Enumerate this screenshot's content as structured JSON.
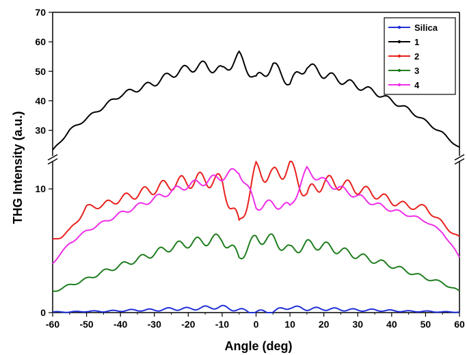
{
  "chart_data": {
    "type": "line",
    "xlabel": "Angle (deg)",
    "ylabel": "THG Intensity (a.u.)",
    "x_range": [
      -60,
      60
    ],
    "x_ticks": [
      -60,
      -50,
      -40,
      -30,
      -20,
      -10,
      0,
      10,
      20,
      30,
      40,
      50,
      60
    ],
    "y_range_lower": [
      0,
      12
    ],
    "y_ticks_lower": [
      0,
      10
    ],
    "y_range_upper": [
      22,
      70
    ],
    "y_ticks_upper": [
      30,
      40,
      50,
      60,
      70
    ],
    "axis_break": true,
    "grid": false,
    "legend_position": "top-right",
    "x": [
      -60,
      -55,
      -50,
      -45,
      -40,
      -35,
      -30,
      -25,
      -20,
      -15,
      -10,
      -5,
      0,
      5,
      10,
      15,
      20,
      25,
      30,
      35,
      40,
      45,
      50,
      55,
      60
    ],
    "series": [
      {
        "name": "Silica",
        "color": "#1f2fd6",
        "values": [
          0.05,
          0.05,
          0.1,
          0.1,
          0.15,
          0.2,
          0.2,
          0.3,
          0.3,
          0.4,
          0.45,
          0.2,
          0.05,
          0.1,
          0.45,
          0.3,
          0.3,
          0.25,
          0.2,
          0.2,
          0.15,
          0.1,
          0.1,
          0.05,
          0.05
        ]
      },
      {
        "name": "1",
        "color": "#000000",
        "values": [
          23,
          30,
          34,
          38,
          42,
          44,
          46,
          49,
          51,
          52,
          50,
          55,
          47,
          52,
          46,
          52,
          49,
          47,
          45,
          43,
          40,
          37,
          33,
          29,
          24
        ]
      },
      {
        "name": "2",
        "color": "#e8201c",
        "values": [
          5.8,
          6.6,
          8.5,
          8.7,
          9.2,
          9.6,
          10.0,
          10.4,
          10.6,
          10.8,
          10.5,
          7.0,
          11.5,
          11.0,
          11.8,
          9.5,
          10.6,
          10.4,
          10.0,
          9.6,
          9.0,
          8.6,
          8.5,
          7.2,
          6.0
        ]
      },
      {
        "name": "3",
        "color": "#1e7d1e",
        "values": [
          1.7,
          2.2,
          2.7,
          3.3,
          3.8,
          4.3,
          4.8,
          5.3,
          5.6,
          5.8,
          6.0,
          4.5,
          6.0,
          5.9,
          5.0,
          5.5,
          5.4,
          5.0,
          4.6,
          4.2,
          3.8,
          3.3,
          2.8,
          2.4,
          1.7
        ]
      },
      {
        "name": "4",
        "color": "#ee2ee8",
        "values": [
          4.0,
          5.6,
          6.6,
          7.3,
          8.0,
          8.6,
          9.2,
          9.8,
          10.3,
          10.6,
          11.0,
          11.5,
          8.6,
          8.8,
          8.5,
          11.5,
          10.6,
          10.0,
          9.4,
          8.8,
          8.3,
          7.9,
          7.4,
          6.5,
          4.5
        ]
      }
    ]
  }
}
